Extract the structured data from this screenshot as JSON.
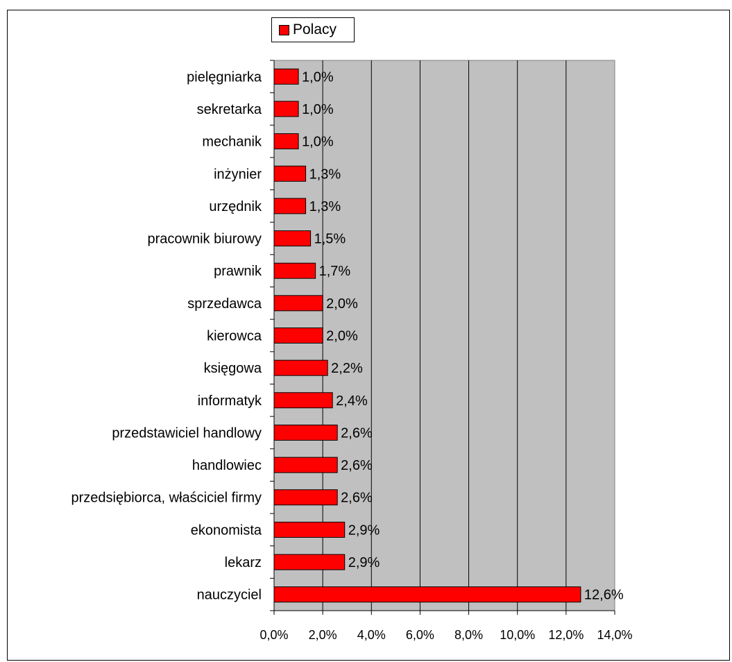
{
  "chart_data": {
    "type": "bar",
    "orientation": "horizontal",
    "title": "",
    "xlabel": "",
    "ylabel": "",
    "categories": [
      "pielęgniarka",
      "sekretarka",
      "mechanik",
      "inżynier",
      "urzędnik",
      "pracownik biurowy",
      "prawnik",
      "sprzedawca",
      "kierowca",
      "księgowa",
      "informatyk",
      "przedstawiciel handlowy",
      "handlowiec",
      "przedsiębiorca, właściciel firmy",
      "ekonomista",
      "lekarz",
      "nauczyciel"
    ],
    "series": [
      {
        "name": "Polacy",
        "color": "#ff0000",
        "values": [
          1.0,
          1.0,
          1.0,
          1.3,
          1.3,
          1.5,
          1.7,
          2.0,
          2.0,
          2.2,
          2.4,
          2.6,
          2.6,
          2.6,
          2.9,
          2.9,
          12.6
        ],
        "data_labels": [
          "1,0%",
          "1,0%",
          "1,0%",
          "1,3%",
          "1,3%",
          "1,5%",
          "1,7%",
          "2,0%",
          "2,0%",
          "2,2%",
          "2,4%",
          "2,6%",
          "2,6%",
          "2,6%",
          "2,9%",
          "2,9%",
          "12,6%"
        ]
      }
    ],
    "xlim": [
      0,
      14
    ],
    "x_ticks": [
      0,
      2,
      4,
      6,
      8,
      10,
      12,
      14
    ],
    "x_tick_labels": [
      "0,0%",
      "2,0%",
      "4,0%",
      "6,0%",
      "8,0%",
      "10,0%",
      "12,0%",
      "14,0%"
    ],
    "grid": true,
    "plot_background": "#c0c0c0",
    "legend_position": "top"
  }
}
